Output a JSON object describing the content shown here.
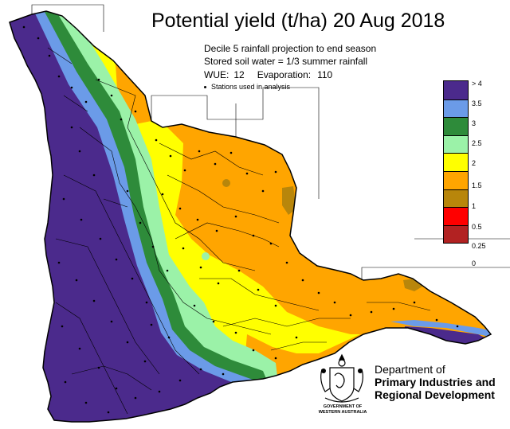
{
  "title": "Potential yield (t/ha) 20 Aug 2018",
  "subtitle_1": "Decile 5 rainfall projection to end season",
  "subtitle_2": "Stored soil water = 1/3 summer rainfall",
  "wue_label": "WUE:",
  "wue_value": "12",
  "evaporation_label": "Evaporation:",
  "evaporation_value": "110",
  "stations_note": "Stations used in analysis",
  "legend": [
    {
      "label": "> 4",
      "color": "#4b2a8c"
    },
    {
      "label": "3.5",
      "color": "#6b9be8"
    },
    {
      "label": "3",
      "color": "#2e8b3a"
    },
    {
      "label": "2.5",
      "color": "#9bf2a8"
    },
    {
      "label": "2",
      "color": "#ffff00"
    },
    {
      "label": "1.5",
      "color": "#ffa500"
    },
    {
      "label": "1",
      "color": "#b8860b"
    },
    {
      "label": "0.5",
      "color": "#ff0000"
    },
    {
      "label": "0.25",
      "color": "#b22222"
    },
    {
      "label": "0",
      "color": ""
    }
  ],
  "department": {
    "line1": "Department of",
    "line2": "Primary Industries and",
    "line3": "Regional Development"
  },
  "crest_text": {
    "line1": "GOVERNMENT OF",
    "line2": "WESTERN AUSTRALIA"
  },
  "colors": {
    "purple": "#4b2a8c",
    "blue": "#6b9be8",
    "dark_green": "#2e8b3a",
    "light_green": "#9bf2a8",
    "yellow": "#ffff00",
    "orange": "#ffa500",
    "brown": "#b8860b"
  }
}
